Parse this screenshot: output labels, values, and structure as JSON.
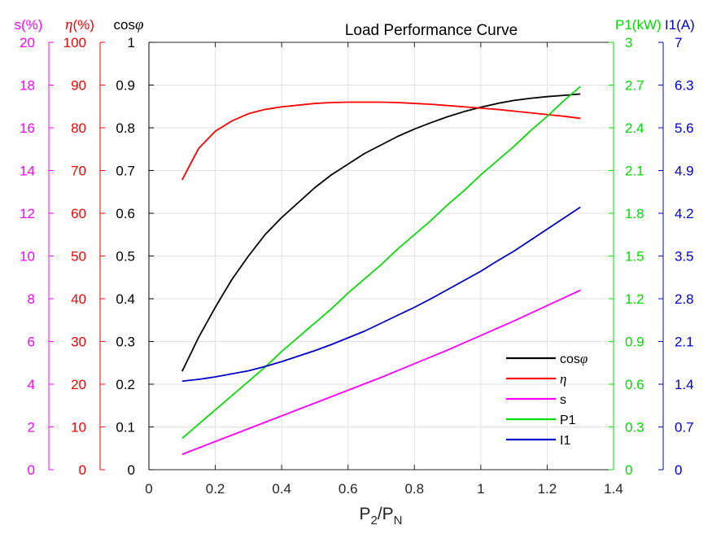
{
  "chart_data": {
    "type": "line",
    "title": "Load Performance Curve",
    "xlabel": {
      "base": "P",
      "sub1": "2",
      "slash": "/P",
      "sub2": "N"
    },
    "x_range": [
      0,
      1.4
    ],
    "x_ticks": [
      "0",
      "0.2",
      "0.4",
      "0.6",
      "0.8",
      "1",
      "1.2",
      "1.4"
    ],
    "grid": true,
    "legend_position": "bottom-right",
    "axes": [
      {
        "id": "s",
        "side": "left",
        "order": 3,
        "label": "s(%)",
        "color": "#ff00ff",
        "range": [
          0,
          20
        ],
        "ticks": [
          "0",
          "2",
          "4",
          "6",
          "8",
          "10",
          "12",
          "14",
          "16",
          "18",
          "20"
        ]
      },
      {
        "id": "eta",
        "side": "left",
        "order": 2,
        "label_symbol": "η",
        "label_suffix": "(%)",
        "color": "#ff0000",
        "range": [
          0,
          100
        ],
        "ticks": [
          "0",
          "10",
          "20",
          "30",
          "40",
          "50",
          "60",
          "70",
          "80",
          "90",
          "100"
        ]
      },
      {
        "id": "cos",
        "side": "left",
        "order": 1,
        "label_prefix": "cos",
        "label_symbol": "φ",
        "color": "#000000",
        "range": [
          0,
          1
        ],
        "ticks": [
          "0",
          "0.1",
          "0.2",
          "0.3",
          "0.4",
          "0.5",
          "0.6",
          "0.7",
          "0.8",
          "0.9",
          "1"
        ]
      },
      {
        "id": "p1",
        "side": "right",
        "order": 1,
        "label": "P1(kW)",
        "color": "#00dd00",
        "range": [
          0,
          3
        ],
        "ticks": [
          "0",
          "0.3",
          "0.6",
          "0.9",
          "1.2",
          "1.5",
          "1.8",
          "2.1",
          "2.4",
          "2.7",
          "3"
        ]
      },
      {
        "id": "i1",
        "side": "right",
        "order": 2,
        "label": "I1(A)",
        "color": "#0000cc",
        "range": [
          0,
          7
        ],
        "ticks": [
          "0",
          "0.7",
          "1.4",
          "2.1",
          "2.8",
          "3.5",
          "4.2",
          "4.9",
          "5.6",
          "6.3",
          "7"
        ]
      }
    ],
    "x": [
      0.1,
      0.15,
      0.2,
      0.25,
      0.3,
      0.35,
      0.4,
      0.45,
      0.5,
      0.55,
      0.6,
      0.65,
      0.7,
      0.75,
      0.8,
      0.85,
      0.9,
      0.95,
      1.0,
      1.05,
      1.1,
      1.15,
      1.2,
      1.25,
      1.3
    ],
    "series": [
      {
        "id": "cos",
        "name_prefix": "cos",
        "name_symbol": "φ",
        "axis": "cos",
        "color": "#000000",
        "values": [
          0.23,
          0.31,
          0.38,
          0.445,
          0.5,
          0.55,
          0.59,
          0.625,
          0.66,
          0.69,
          0.715,
          0.74,
          0.76,
          0.78,
          0.797,
          0.812,
          0.826,
          0.838,
          0.848,
          0.857,
          0.864,
          0.869,
          0.873,
          0.876,
          0.879
        ]
      },
      {
        "id": "eta",
        "name_symbol": "η",
        "axis": "eta",
        "color": "#ff0000",
        "values": [
          67.8,
          75.2,
          79.2,
          81.6,
          83.3,
          84.3,
          84.9,
          85.3,
          85.7,
          85.9,
          86.0,
          86.0,
          86.0,
          85.9,
          85.7,
          85.5,
          85.2,
          84.9,
          84.6,
          84.3,
          83.9,
          83.5,
          83.1,
          82.7,
          82.2
        ]
      },
      {
        "id": "s",
        "name": "s",
        "axis": "s",
        "color": "#ff00ff",
        "values": [
          0.72,
          1.02,
          1.32,
          1.62,
          1.92,
          2.22,
          2.52,
          2.82,
          3.12,
          3.42,
          3.72,
          4.02,
          4.32,
          4.64,
          4.96,
          5.28,
          5.6,
          5.94,
          6.28,
          6.62,
          6.96,
          7.32,
          7.68,
          8.04,
          8.4
        ]
      },
      {
        "id": "p1",
        "name": "P1",
        "axis": "p1",
        "color": "#00dd00",
        "values": [
          0.22,
          0.32,
          0.42,
          0.52,
          0.62,
          0.72,
          0.83,
          0.93,
          1.03,
          1.13,
          1.24,
          1.34,
          1.44,
          1.55,
          1.65,
          1.75,
          1.86,
          1.96,
          2.07,
          2.17,
          2.27,
          2.38,
          2.48,
          2.59,
          2.69
        ]
      },
      {
        "id": "i1",
        "name": "I1",
        "axis": "i1",
        "color": "#0000cc",
        "values": [
          1.45,
          1.48,
          1.52,
          1.57,
          1.62,
          1.69,
          1.77,
          1.86,
          1.95,
          2.05,
          2.16,
          2.27,
          2.4,
          2.53,
          2.66,
          2.8,
          2.95,
          3.1,
          3.25,
          3.42,
          3.58,
          3.76,
          3.94,
          4.12,
          4.3
        ]
      }
    ]
  }
}
